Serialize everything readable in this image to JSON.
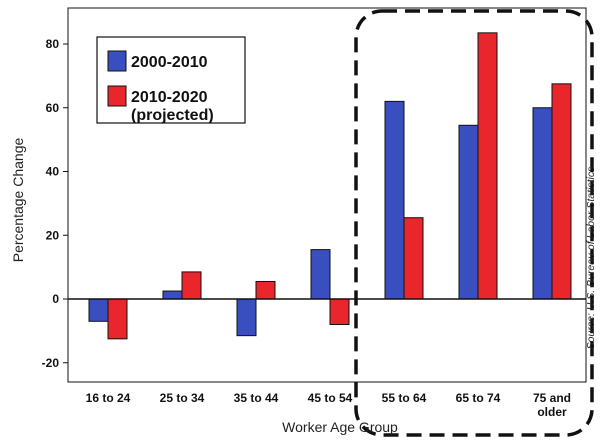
{
  "chart_data": {
    "type": "bar",
    "xlabel": "Worker Age Group",
    "ylabel": "Percentage Change",
    "ylim": [
      -25,
      85
    ],
    "yticks": [
      "80",
      "60",
      "40",
      "20",
      "0",
      "-20"
    ],
    "categories": [
      "16 to 24",
      "25 to 34",
      "35 to 44",
      "45 to 54",
      "55 to 64",
      "65 to 74",
      "75 and older"
    ],
    "category_label_lines": [
      [
        "16 to 24"
      ],
      [
        "25 to 34"
      ],
      [
        "35 to 44"
      ],
      [
        "45 to 54"
      ],
      [
        "55 to 64"
      ],
      [
        "65 to 74"
      ],
      [
        "75 and",
        "older"
      ]
    ],
    "series": [
      {
        "name": "2000-2010",
        "legend_lines": [
          "2000-2010"
        ],
        "color": "#3a4fbf",
        "values": [
          -7,
          2.5,
          -11.5,
          15.5,
          62,
          54.5,
          60
        ]
      },
      {
        "name": "2010-2020 (projected)",
        "legend_lines": [
          "2010-2020",
          "(projected)"
        ],
        "color": "#e8262b",
        "values": [
          -12.5,
          8.5,
          5.5,
          -8,
          25.5,
          83.5,
          67.5
        ]
      }
    ],
    "legend_position": "top-left",
    "grid": false,
    "highlight": {
      "categories": [
        "55 to 64",
        "65 to 74",
        "75 and older"
      ],
      "style": "dashed rounded box"
    },
    "source": "Source: U.S. Bureau of Labor Statistics"
  }
}
